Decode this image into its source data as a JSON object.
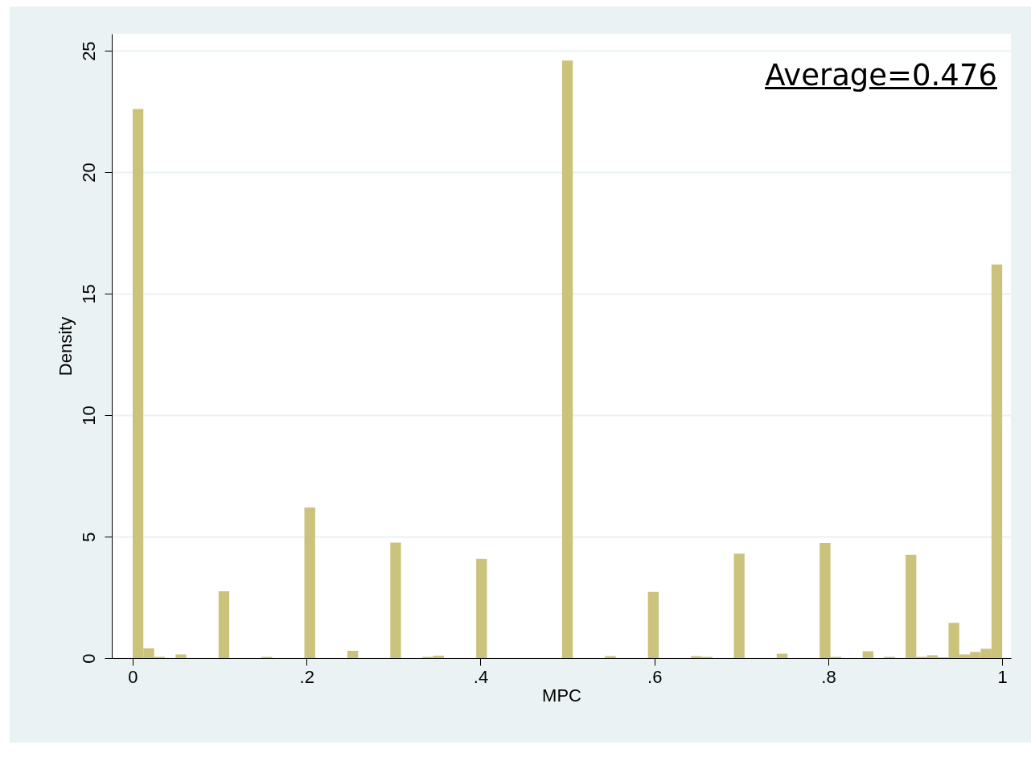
{
  "chart_data": {
    "type": "histogram",
    "xlabel": "MPC",
    "ylabel": "Density",
    "annotations": [
      "Average=0.476"
    ],
    "color": "#cbc27c",
    "bins": [
      0,
      0.0123,
      0.0247,
      0.037,
      0.0494,
      0.0617,
      0.0741,
      0.0864,
      0.0988,
      0.1111,
      0.1235,
      0.1358,
      0.1481,
      0.1605,
      0.1728,
      0.1852,
      0.1975,
      0.2099,
      0.2222,
      0.2346,
      0.2469,
      0.2593,
      0.2716,
      0.284,
      0.2963,
      0.3086,
      0.321,
      0.3333,
      0.3457,
      0.358,
      0.3704,
      0.3827,
      0.3951,
      0.4074,
      0.4198,
      0.4321,
      0.4444,
      0.4568,
      0.4691,
      0.4815,
      0.4938,
      0.5062,
      0.5185,
      0.5309,
      0.5432,
      0.5556,
      0.5679,
      0.5802,
      0.5926,
      0.6049,
      0.6173,
      0.6296,
      0.642,
      0.6543,
      0.6667,
      0.679,
      0.6914,
      0.7037,
      0.716,
      0.7284,
      0.7407,
      0.7531,
      0.7654,
      0.7778,
      0.7901,
      0.8025,
      0.8148,
      0.8272,
      0.8395,
      0.8519,
      0.8642,
      0.8765,
      0.8889,
      0.9012,
      0.9136,
      0.9259,
      0.9383,
      0.9506,
      0.963,
      0.9753,
      0.9877,
      1
    ],
    "values": [
      22.6,
      0.4,
      0.05,
      0,
      0.15,
      0,
      0,
      0,
      2.75,
      0,
      0,
      0,
      0.05,
      0,
      0,
      0,
      6.2,
      0,
      0,
      0,
      0.3,
      0,
      0,
      0,
      4.75,
      0,
      0,
      0.05,
      0.1,
      0,
      0,
      0,
      4.08,
      0,
      0,
      0,
      0,
      0,
      0,
      0,
      24.6,
      0,
      0,
      0,
      0.08,
      0,
      0,
      0,
      2.72,
      0,
      0,
      0,
      0.08,
      0.05,
      0,
      0,
      4.3,
      0,
      0,
      0,
      0.18,
      0,
      0,
      0,
      4.74,
      0.05,
      0,
      0,
      0.28,
      0,
      0.05,
      0,
      4.25,
      0.05,
      0.12,
      0.03,
      1.45,
      0.15,
      0.25,
      0.38,
      16.2
    ],
    "xlim": [
      -0.024,
      1.01
    ],
    "ylim": [
      0,
      25.7
    ],
    "xticks": [
      0,
      {
        "value": 0.2,
        "label": ".2"
      },
      {
        "value": 0.4,
        "label": ".4"
      },
      {
        "value": 0.6,
        "label": ".6"
      },
      {
        "value": 0.8,
        "label": ".8"
      },
      1
    ],
    "yticks": [
      0,
      5,
      10,
      15,
      20,
      25
    ],
    "grid": "y"
  }
}
